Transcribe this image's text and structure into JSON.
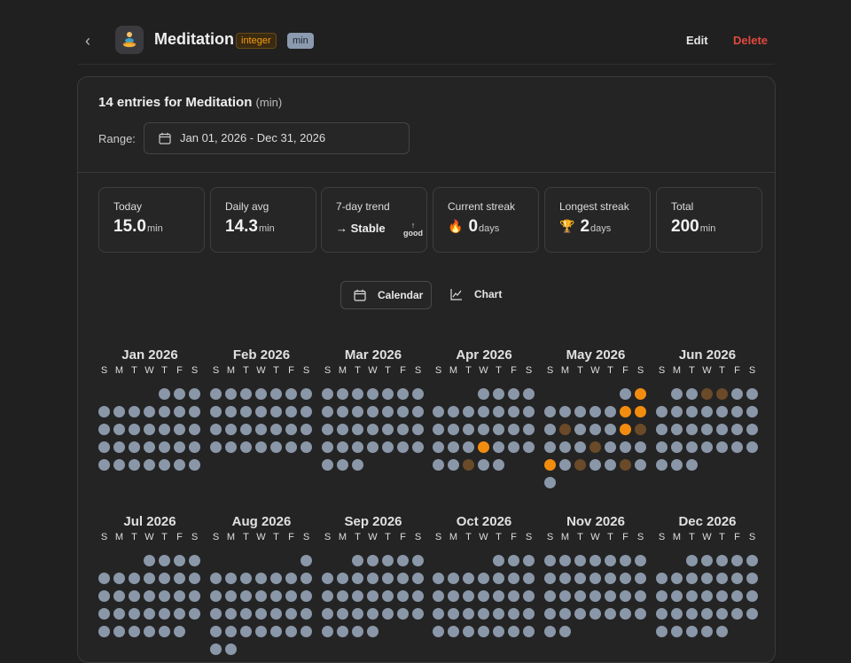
{
  "header": {
    "back_glyph": "‹",
    "title": "Meditation",
    "type_badge": "integer",
    "unit_badge": "min",
    "edit_label": "Edit",
    "delete_label": "Delete",
    "icon": "meditation-icon"
  },
  "summary": {
    "entries_text": "14 entries for Meditation",
    "entries_unit": "(min)",
    "range_label": "Range:",
    "range_value": "Jan 01, 2026 - Dec 31, 2026"
  },
  "stats": {
    "today": {
      "label": "Today",
      "value": "15.0",
      "unit": "min"
    },
    "daily_avg": {
      "label": "Daily avg",
      "value": "14.3",
      "unit": "min"
    },
    "trend": {
      "label": "7-day trend",
      "value": "→ Stable",
      "arrow": "↑",
      "note": "good"
    },
    "current_streak": {
      "label": "Current streak",
      "value": "0",
      "unit": "days",
      "icon_glyph": "🔥"
    },
    "longest_streak": {
      "label": "Longest streak",
      "value": "2",
      "unit": "days",
      "icon_glyph": "🏆"
    },
    "total": {
      "label": "Total",
      "value": "200",
      "unit": "min"
    }
  },
  "view_toggle": {
    "calendar_label": "Calendar",
    "chart_label": "Chart"
  },
  "weekday_letters": [
    "S",
    "M",
    "T",
    "W",
    "T",
    "F",
    "S"
  ],
  "accent_colors": {
    "high": "#f28c0f",
    "low": "#6a4a28",
    "empty": "#8a97a8",
    "delete": "#e0483f"
  },
  "calendar": {
    "months": [
      {
        "name": "Jan 2026",
        "start": 4,
        "days": 31,
        "entries": {}
      },
      {
        "name": "Feb 2026",
        "start": 0,
        "days": 28,
        "entries": {}
      },
      {
        "name": "Mar 2026",
        "start": 0,
        "days": 31,
        "entries": {}
      },
      {
        "name": "Apr 2026",
        "start": 3,
        "days": 30,
        "entries": {
          "22": "high",
          "28": "low"
        }
      },
      {
        "name": "May 2026",
        "start": 5,
        "days": 31,
        "entries": {
          "2": "high",
          "8": "high",
          "9": "high",
          "11": "low",
          "15": "high",
          "16": "low",
          "20": "low",
          "24": "high",
          "26": "low",
          "29": "low"
        }
      },
      {
        "name": "Jun 2026",
        "start": 1,
        "days": 30,
        "entries": {
          "3": "low",
          "4": "low"
        }
      },
      {
        "name": "Jul 2026",
        "start": 3,
        "days": 31,
        "entries": {}
      },
      {
        "name": "Aug 2026",
        "start": 6,
        "days": 31,
        "entries": {}
      },
      {
        "name": "Sep 2026",
        "start": 2,
        "days": 30,
        "entries": {}
      },
      {
        "name": "Oct 2026",
        "start": 4,
        "days": 31,
        "entries": {}
      },
      {
        "name": "Nov 2026",
        "start": 0,
        "days": 30,
        "entries": {}
      },
      {
        "name": "Dec 2026",
        "start": 2,
        "days": 31,
        "entries": {}
      }
    ]
  }
}
